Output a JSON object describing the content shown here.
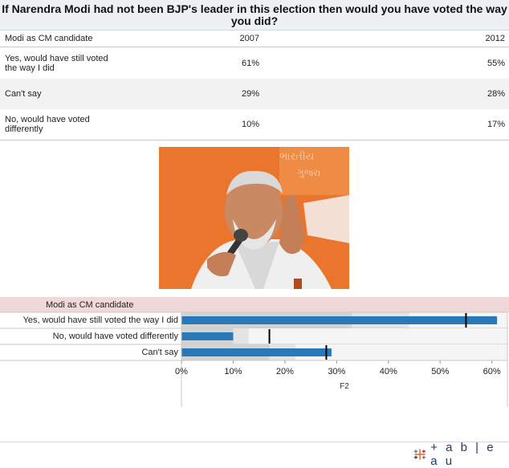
{
  "title": "If Narendra Modi had not been BJP's leader in this election then would you have voted the way you did?",
  "table": {
    "header": [
      "Modi as CM candidate",
      "2007",
      "2012"
    ],
    "rows": [
      [
        "Yes, would have still voted the way I did",
        "61%",
        "55%"
      ],
      [
        "Can't say",
        "29%",
        "28%"
      ],
      [
        "No, would have voted differently",
        "10%",
        "17%"
      ]
    ]
  },
  "photo": {
    "alt_words": [
      "ભારતીય",
      "ગુજરા"
    ]
  },
  "chart_data": {
    "type": "bar",
    "header_label": "Modi as CM candidate",
    "categories": [
      "Yes, would have still voted the way I did",
      "No, would have voted differently",
      "Can't say"
    ],
    "values": [
      61,
      10,
      29
    ],
    "reference_values": [
      55,
      17,
      28
    ],
    "band_values": [
      [
        33,
        44
      ],
      [
        10,
        13
      ],
      [
        17,
        22
      ]
    ],
    "xlabel": "F2",
    "xlim": [
      0,
      63
    ],
    "xticks": [
      "0%",
      "10%",
      "20%",
      "30%",
      "40%",
      "50%",
      "60%"
    ],
    "xtick_values": [
      0,
      10,
      20,
      30,
      40,
      50,
      60
    ],
    "colors": {
      "bar": "#2979b9",
      "ref_line": "#000000",
      "band_light": "#e4e4e4",
      "band_dark": "#d3d3d3"
    }
  },
  "logo": {
    "text": "+ a b | e a u",
    "brand": "tableau"
  }
}
